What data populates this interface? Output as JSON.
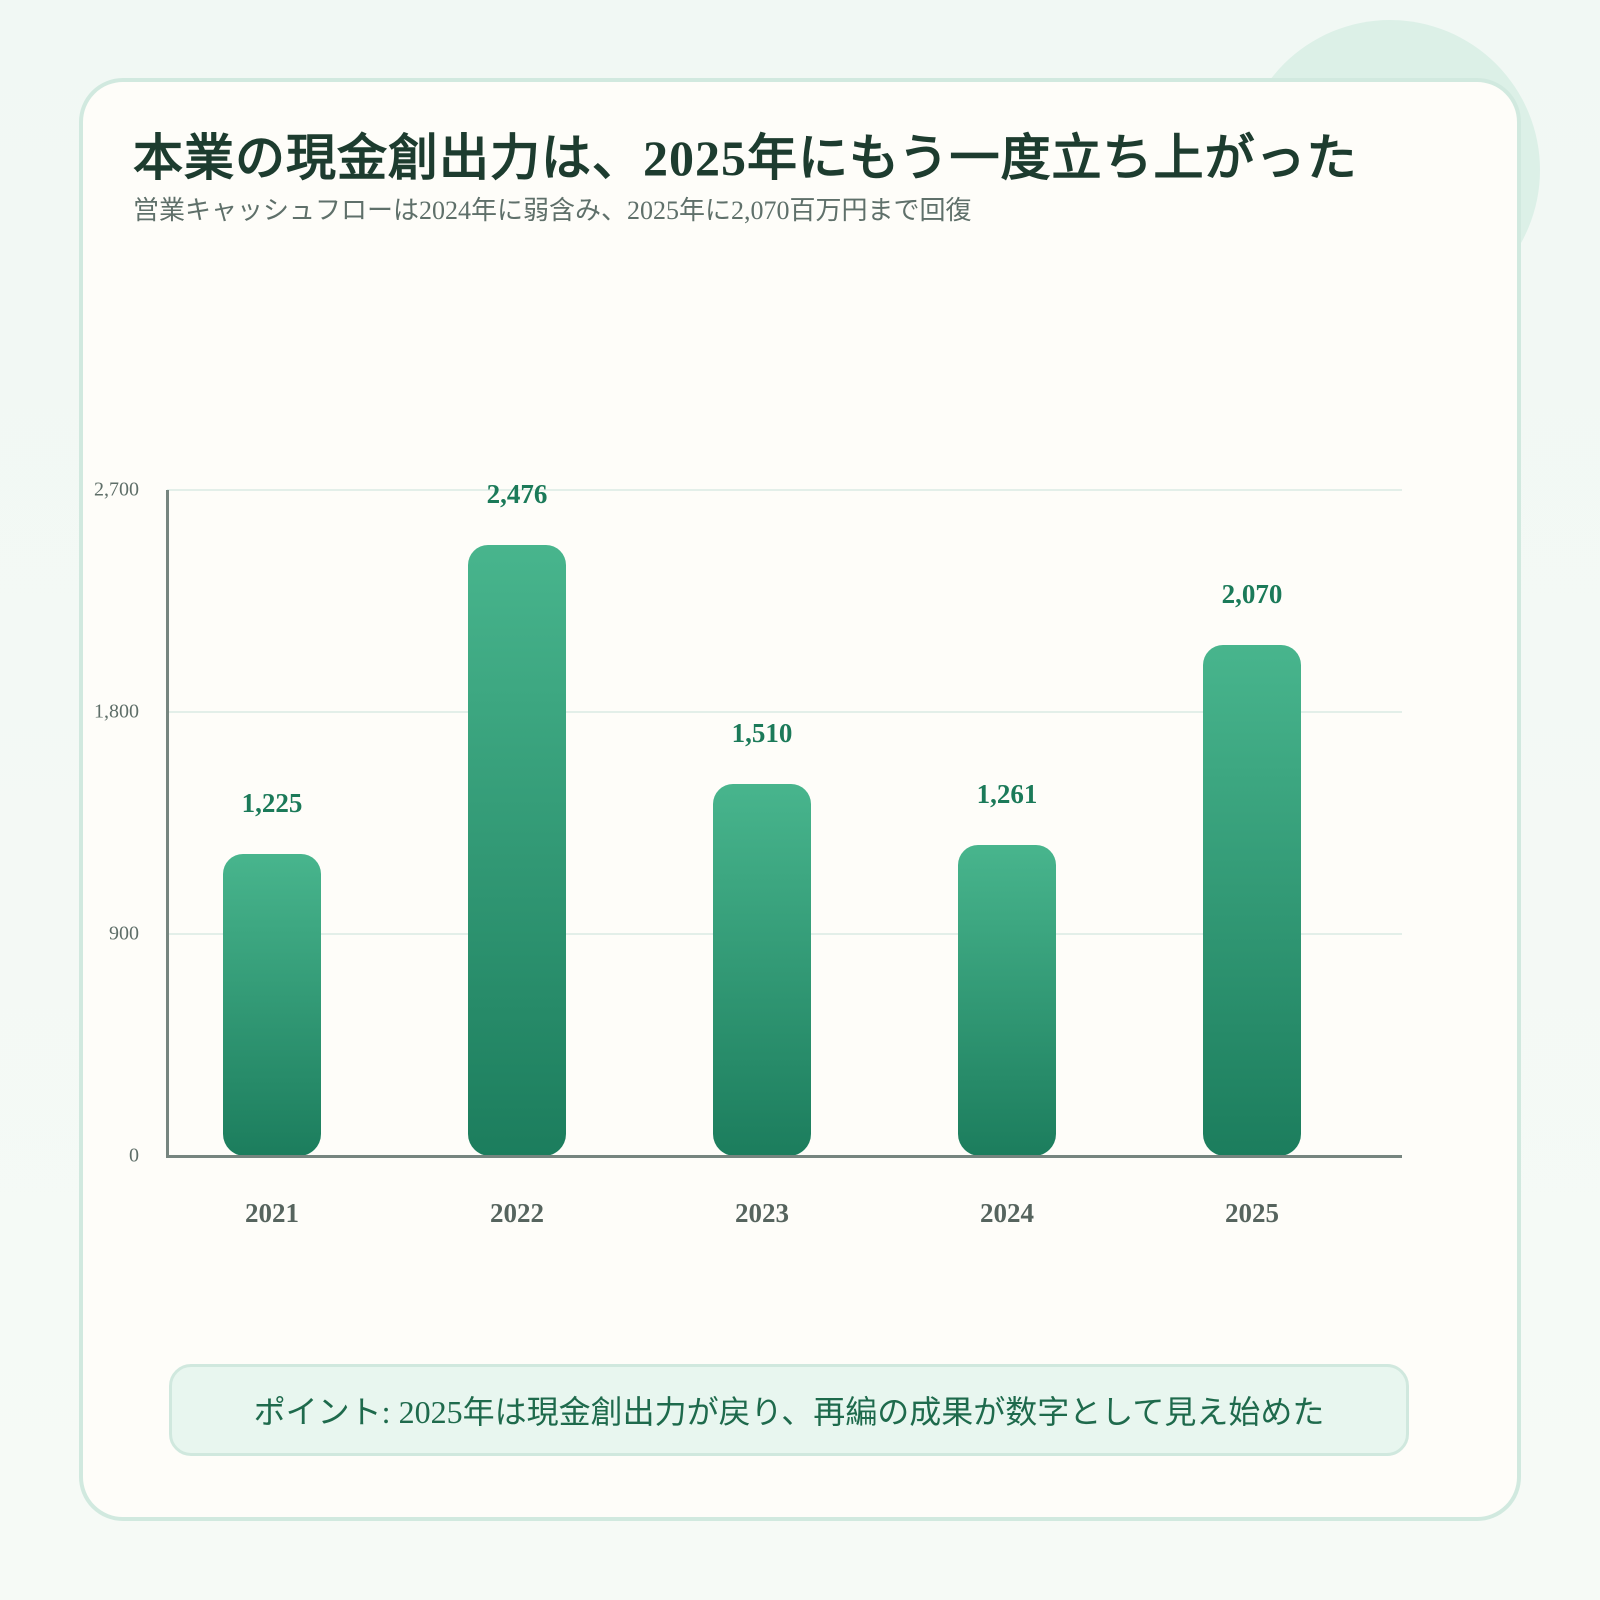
{
  "header": {
    "title": "本業の現金創出力は、2025年にもう一度立ち上がった",
    "subtitle": "営業キャッシュフローは2024年に弱含み、2025年に2,070百万円まで回復"
  },
  "callout": {
    "text": "ポイント: 2025年は現金創出力が戻り、再編の成果が数字として見え始めた"
  },
  "colors": {
    "bar_top": "#48b58d",
    "bar_bottom": "#1c7d5d",
    "value_label": "#1b7a59",
    "title": "#1d3c2f",
    "card_border": "#d1e9df",
    "callout_bg": "#e8f6ef"
  },
  "chart_data": {
    "type": "bar",
    "title": "本業の現金創出力は、2025年にもう一度立ち上がった",
    "subtitle": "営業キャッシュフローは2024年に弱含み、2025年に2,070百万円まで回復",
    "categories": [
      "2021",
      "2022",
      "2023",
      "2024",
      "2025"
    ],
    "values": [
      1225,
      2476,
      1510,
      1261,
      2070
    ],
    "value_labels": [
      "1,225",
      "2,476",
      "1,510",
      "1,261",
      "2,070"
    ],
    "xlabel": "",
    "ylabel": "",
    "unit": "百万円",
    "ylim": [
      0,
      2700
    ],
    "yticks": [
      0,
      900,
      1800,
      2700
    ],
    "ytick_labels": [
      "0",
      "900",
      "1,800",
      "2,700"
    ],
    "grid": true,
    "legend": null
  }
}
